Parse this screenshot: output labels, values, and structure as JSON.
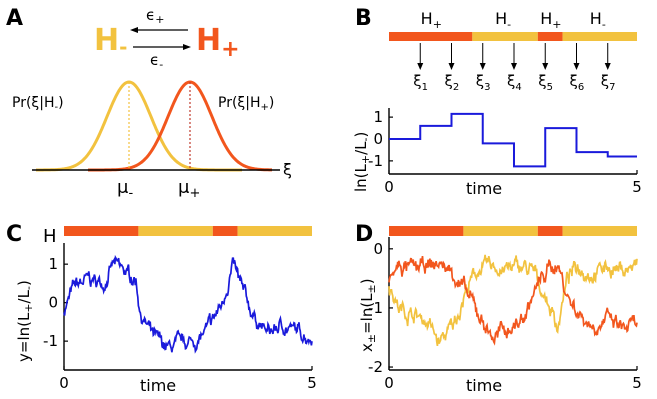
{
  "colors": {
    "plus": "#f2561d",
    "minus": "#f2c23f",
    "trace": "#1a1adb",
    "axis": "#000000"
  },
  "panelA": {
    "label": "A",
    "state_minus": "H",
    "state_minus_sub": "-",
    "state_plus": "H",
    "state_plus_sub": "+",
    "rate_top": "ϵ",
    "rate_top_sub": "+",
    "rate_bottom": "ϵ",
    "rate_bottom_sub": "-",
    "dist_minus": "Pr(ξ|H",
    "dist_minus_sub": "-",
    "dist_minus_close": ")",
    "dist_plus": "Pr(ξ|H",
    "dist_plus_sub": "+",
    "dist_plus_close": ")",
    "axis_var": "ξ",
    "mu": "μ",
    "mu_minus_sub": "-",
    "mu_plus_sub": "+"
  },
  "panelB": {
    "label": "B",
    "segments": [
      {
        "state": "plus",
        "t0": 0,
        "t1": 1.68,
        "label": "H",
        "sub": "+"
      },
      {
        "state": "minus",
        "t0": 1.68,
        "t1": 3.0,
        "label": "H",
        "sub": "-"
      },
      {
        "state": "plus",
        "t0": 3.0,
        "t1": 3.5,
        "label": "H",
        "sub": "+"
      },
      {
        "state": "minus",
        "t0": 3.5,
        "t1": 5.0,
        "label": "H",
        "sub": "-"
      }
    ],
    "samples": [
      {
        "t": 0.63,
        "label": "ξ",
        "sub": "1"
      },
      {
        "t": 1.26,
        "label": "ξ",
        "sub": "2"
      },
      {
        "t": 1.89,
        "label": "ξ",
        "sub": "3"
      },
      {
        "t": 2.52,
        "label": "ξ",
        "sub": "4"
      },
      {
        "t": 3.15,
        "label": "ξ",
        "sub": "5"
      },
      {
        "t": 3.78,
        "label": "ξ",
        "sub": "6"
      },
      {
        "t": 4.41,
        "label": "ξ",
        "sub": "7"
      }
    ],
    "ylabel": "ln(L",
    "ylabel_sub1": "+",
    "ylabel_mid": "/L",
    "ylabel_sub2": "-",
    "ylabel_close": ")",
    "xlabel": "time",
    "xticks": [
      "0",
      "5"
    ],
    "yticks": [
      "1",
      "0",
      "-1"
    ],
    "xlim": [
      0,
      5
    ],
    "ylim": [
      -1.6,
      1.6
    ],
    "step_y": [
      0,
      0.6,
      1.15,
      -0.2,
      -1.25,
      0.5,
      -0.6,
      -0.8
    ]
  },
  "panelC": {
    "label": "C",
    "bar_label": "H",
    "segments": [
      {
        "state": "plus",
        "t0": 0,
        "t1": 1.5
      },
      {
        "state": "minus",
        "t0": 1.5,
        "t1": 3.0
      },
      {
        "state": "plus",
        "t0": 3.0,
        "t1": 3.5
      },
      {
        "state": "minus",
        "t0": 3.5,
        "t1": 5.0
      }
    ],
    "ylabel": "y=ln(L",
    "ylabel_sub1": "+",
    "ylabel_mid": "/L",
    "ylabel_sub2": "-",
    "ylabel_close": ")",
    "xlabel": "time",
    "xticks": [
      "0",
      "5"
    ],
    "yticks": [
      "1",
      "0",
      "-1"
    ],
    "xlim": [
      0,
      5
    ],
    "ylim": [
      -1.75,
      1.55
    ],
    "anchors": [
      [
        0,
        -0.2
      ],
      [
        0.2,
        0.4
      ],
      [
        0.5,
        0.6
      ],
      [
        0.8,
        0.5
      ],
      [
        1.0,
        1.0
      ],
      [
        1.2,
        0.8
      ],
      [
        1.45,
        0.6
      ],
      [
        1.55,
        -0.3
      ],
      [
        1.8,
        -0.9
      ],
      [
        2.1,
        -1.2
      ],
      [
        2.4,
        -1.05
      ],
      [
        2.7,
        -1.0
      ],
      [
        2.95,
        -0.6
      ],
      [
        3.2,
        0.0
      ],
      [
        3.4,
        1.0
      ],
      [
        3.6,
        0.3
      ],
      [
        3.8,
        -0.3
      ],
      [
        4.1,
        -0.8
      ],
      [
        4.4,
        -0.6
      ],
      [
        4.7,
        -0.75
      ],
      [
        5.0,
        -0.9
      ]
    ]
  },
  "panelD": {
    "label": "D",
    "segments": [
      {
        "state": "plus",
        "t0": 0,
        "t1": 1.5
      },
      {
        "state": "minus",
        "t0": 1.5,
        "t1": 3.0
      },
      {
        "state": "plus",
        "t0": 3.0,
        "t1": 3.5
      },
      {
        "state": "minus",
        "t0": 3.5,
        "t1": 5.0
      }
    ],
    "ylabel": "x",
    "ylabel_sub": "±",
    "ylabel_rest": "=ln(L",
    "ylabel_sub2": "±",
    "ylabel_close": ")",
    "xlabel": "time",
    "xticks": [
      "0",
      "5"
    ],
    "yticks": [
      "0",
      "-1",
      "-2"
    ],
    "xlim": [
      0,
      5
    ],
    "ylim": [
      -2.05,
      0.2
    ],
    "plus_anchors": [
      [
        0,
        -0.5
      ],
      [
        0.2,
        -0.3
      ],
      [
        0.5,
        -0.35
      ],
      [
        0.8,
        -0.3
      ],
      [
        1.0,
        -0.25
      ],
      [
        1.3,
        -0.4
      ],
      [
        1.55,
        -0.75
      ],
      [
        1.8,
        -1.1
      ],
      [
        2.1,
        -1.5
      ],
      [
        2.4,
        -1.35
      ],
      [
        2.7,
        -1.2
      ],
      [
        2.95,
        -0.7
      ],
      [
        3.2,
        -0.35
      ],
      [
        3.4,
        -0.25
      ],
      [
        3.6,
        -0.8
      ],
      [
        3.8,
        -1.05
      ],
      [
        4.1,
        -1.3
      ],
      [
        4.4,
        -1.2
      ],
      [
        4.7,
        -1.35
      ],
      [
        5.0,
        -1.3
      ]
    ],
    "minus_anchors": [
      [
        0,
        -0.6
      ],
      [
        0.2,
        -1.0
      ],
      [
        0.5,
        -1.1
      ],
      [
        0.8,
        -1.25
      ],
      [
        1.0,
        -1.6
      ],
      [
        1.3,
        -1.3
      ],
      [
        1.55,
        -0.7
      ],
      [
        1.8,
        -0.35
      ],
      [
        2.1,
        -0.3
      ],
      [
        2.4,
        -0.35
      ],
      [
        2.7,
        -0.3
      ],
      [
        2.95,
        -0.45
      ],
      [
        3.2,
        -0.9
      ],
      [
        3.4,
        -1.3
      ],
      [
        3.6,
        -0.5
      ],
      [
        3.8,
        -0.3
      ],
      [
        4.1,
        -0.4
      ],
      [
        4.4,
        -0.3
      ],
      [
        4.7,
        -0.35
      ],
      [
        5.0,
        -0.3
      ]
    ]
  }
}
